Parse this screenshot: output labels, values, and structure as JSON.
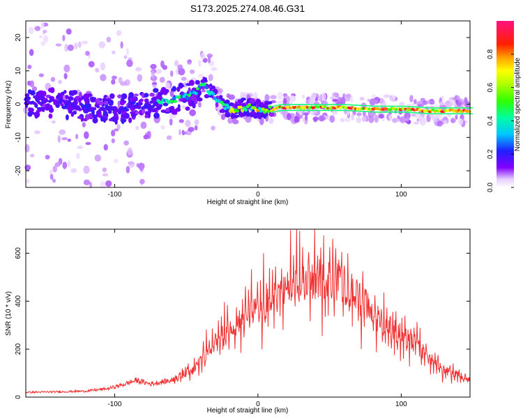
{
  "title": "S173.2025.274.08.46.G31",
  "chart_data": [
    {
      "type": "heatmap",
      "name": "spectrogram",
      "xlabel": "Height of straight line (km)",
      "ylabel": "Frequency (Hz)",
      "xlim": [
        -162,
        148
      ],
      "ylim": [
        -25,
        25
      ],
      "xticks": [
        -100,
        0,
        100
      ],
      "yticks": [
        -20,
        -10,
        0,
        10,
        20
      ],
      "colorbar": {
        "label": "Normalized spectral amplitude",
        "range": [
          0,
          1
        ],
        "ticks": [
          0.0,
          0.2,
          0.4,
          0.6,
          0.8
        ]
      },
      "ridge": {
        "x": [
          -162,
          -140,
          -120,
          -100,
          -80,
          -60,
          -45,
          -38,
          -32,
          -25,
          -20,
          -15,
          -10,
          -5,
          0,
          5,
          10,
          15,
          20,
          40,
          60,
          80,
          100,
          120,
          148
        ],
        "freq": [
          0,
          0.5,
          -1,
          -1.5,
          -0.5,
          1,
          3,
          6,
          3,
          0,
          -1.5,
          -1.5,
          -1,
          -1,
          -1.5,
          -2,
          -1.5,
          -1,
          -1,
          -1,
          -1,
          -1.5,
          -1.5,
          -2,
          -2
        ]
      }
    },
    {
      "type": "line",
      "name": "snr",
      "xlabel": "Height of straight line (km)",
      "ylabel": "SNR (10 * v/v)",
      "xlim": [
        -162,
        148
      ],
      "ylim": [
        0,
        700
      ],
      "xticks": [
        -100,
        0,
        100
      ],
      "yticks": [
        0,
        200,
        400,
        600
      ],
      "color": "#f03030",
      "envelope": {
        "x": [
          -162,
          -140,
          -120,
          -105,
          -95,
          -85,
          -75,
          -60,
          -45,
          -30,
          -20,
          -10,
          0,
          10,
          20,
          30,
          40,
          50,
          60,
          70,
          80,
          90,
          100,
          110,
          120,
          130,
          140,
          148
        ],
        "y": [
          20,
          22,
          25,
          35,
          50,
          70,
          55,
          70,
          120,
          220,
          280,
          330,
          360,
          400,
          440,
          470,
          490,
          500,
          470,
          420,
          350,
          300,
          260,
          220,
          160,
          110,
          95,
          70
        ]
      }
    }
  ],
  "colors": {
    "axes": "#000000",
    "line": "#f03030"
  }
}
